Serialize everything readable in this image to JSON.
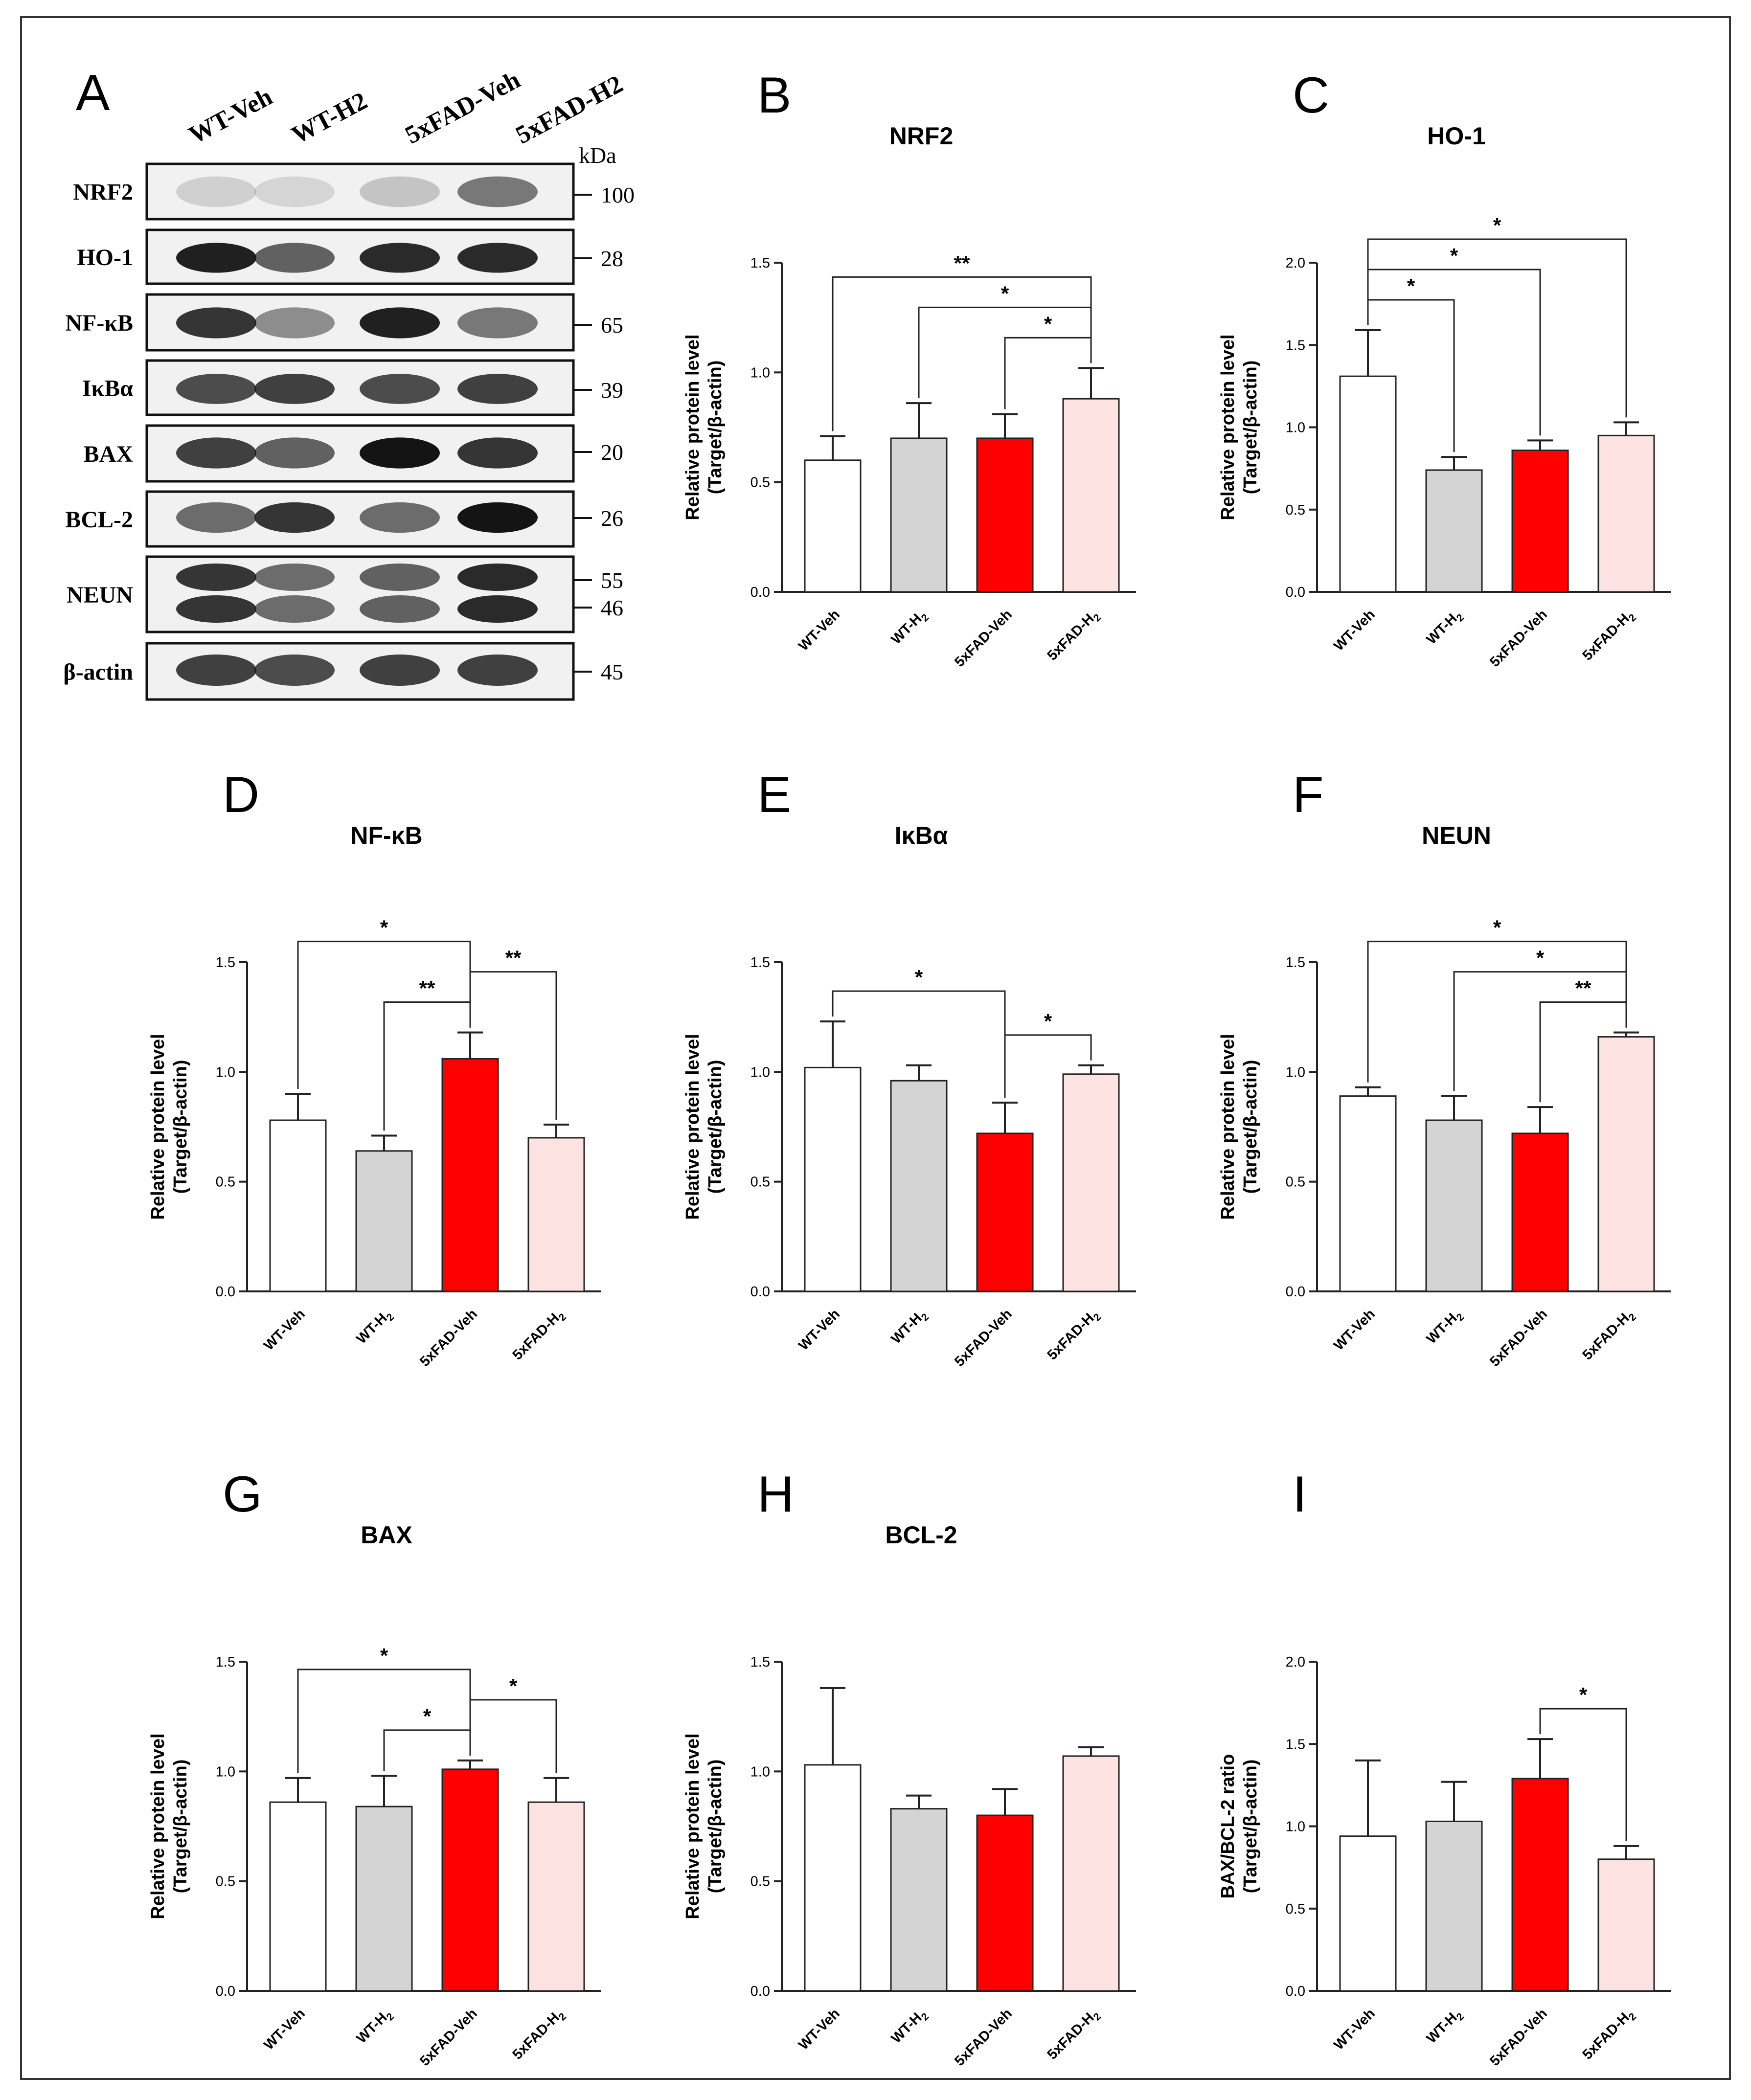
{
  "figure": {
    "blot": {
      "panel_label": "A",
      "kda_label": "kDa",
      "lanes": [
        "WT-Veh",
        "WT-H2",
        "5xFAD-Veh",
        "5xFAD-H2"
      ],
      "rows": [
        {
          "name": "NRF2",
          "kda": [
            "100"
          ]
        },
        {
          "name": "HO-1",
          "kda": [
            "28"
          ]
        },
        {
          "name": "NF-κB",
          "kda": [
            "65"
          ]
        },
        {
          "name": "IκBα",
          "kda": [
            "39"
          ]
        },
        {
          "name": "BAX",
          "kda": [
            "20"
          ]
        },
        {
          "name": "BCL-2",
          "kda": [
            "26"
          ]
        },
        {
          "name": "NEUN",
          "kda": [
            "55",
            "46"
          ]
        },
        {
          "name": "β-actin",
          "kda": [
            "45"
          ]
        }
      ]
    },
    "colors": {
      "WT-Veh": "#ffffff",
      "WT-H2": "#d4d4d4",
      "5xFAD-Veh": "#ff0000",
      "5xFAD-H2": "#fde2e2",
      "frame": "#333333"
    }
  },
  "chart_data": [
    {
      "panel": "B",
      "type": "bar",
      "title": "NRF2",
      "categories": [
        "WT-Veh",
        "WT-H2",
        "5xFAD-Veh",
        "5xFAD-H2"
      ],
      "values": [
        0.6,
        0.7,
        0.7,
        0.88
      ],
      "errors": [
        0.11,
        0.16,
        0.11,
        0.14
      ],
      "ylabel": [
        "Relative protein level",
        "(Target/β-actin)"
      ],
      "ylim": [
        0,
        1.5
      ],
      "yticks": [
        "0.0",
        "0.5",
        "1.0",
        "1.5"
      ],
      "significance": [
        {
          "from": 0,
          "to": 3,
          "label": "**"
        },
        {
          "from": 1,
          "to": 3,
          "label": "*"
        },
        {
          "from": 2,
          "to": 3,
          "label": "*"
        }
      ]
    },
    {
      "panel": "C",
      "type": "bar",
      "title": "HO-1",
      "categories": [
        "WT-Veh",
        "WT-H2",
        "5xFAD-Veh",
        "5xFAD-H2"
      ],
      "values": [
        1.31,
        0.74,
        0.86,
        0.95
      ],
      "errors": [
        0.28,
        0.08,
        0.06,
        0.08
      ],
      "ylabel": [
        "Relative protein level",
        "(Target/β-actin)"
      ],
      "ylim": [
        0,
        2.0
      ],
      "yticks": [
        "0.0",
        "0.5",
        "1.0",
        "1.5",
        "2.0"
      ],
      "significance": [
        {
          "from": 0,
          "to": 3,
          "label": "*"
        },
        {
          "from": 0,
          "to": 2,
          "label": "*"
        },
        {
          "from": 0,
          "to": 1,
          "label": "*"
        }
      ]
    },
    {
      "panel": "D",
      "type": "bar",
      "title": "NF-κB",
      "categories": [
        "WT-Veh",
        "WT-H2",
        "5xFAD-Veh",
        "5xFAD-H2"
      ],
      "values": [
        0.78,
        0.64,
        1.06,
        0.7
      ],
      "errors": [
        0.12,
        0.07,
        0.12,
        0.06
      ],
      "ylabel": [
        "Relative protein level",
        "(Target/β-actin)"
      ],
      "ylim": [
        0,
        1.5
      ],
      "yticks": [
        "0.0",
        "0.5",
        "1.0",
        "1.5"
      ],
      "significance": [
        {
          "from": 0,
          "to": 2,
          "label": "*"
        },
        {
          "from": 1,
          "to": 2,
          "label": "**"
        },
        {
          "from": 2,
          "to": 3,
          "label": "**"
        }
      ]
    },
    {
      "panel": "E",
      "type": "bar",
      "title": "IκBα",
      "categories": [
        "WT-Veh",
        "WT-H2",
        "5xFAD-Veh",
        "5xFAD-H2"
      ],
      "values": [
        1.02,
        0.96,
        0.72,
        0.99
      ],
      "errors": [
        0.21,
        0.07,
        0.14,
        0.04
      ],
      "ylabel": [
        "Relative protein level",
        "(Target/β-actin)"
      ],
      "ylim": [
        0,
        1.5
      ],
      "yticks": [
        "0.0",
        "0.5",
        "1.0",
        "1.5"
      ],
      "significance": [
        {
          "from": 0,
          "to": 2,
          "label": "*"
        },
        {
          "from": 2,
          "to": 3,
          "label": "*"
        }
      ]
    },
    {
      "panel": "F",
      "type": "bar",
      "title": "NEUN",
      "categories": [
        "WT-Veh",
        "WT-H2",
        "5xFAD-Veh",
        "5xFAD-H2"
      ],
      "values": [
        0.89,
        0.78,
        0.72,
        1.16
      ],
      "errors": [
        0.04,
        0.11,
        0.12,
        0.02
      ],
      "ylabel": [
        "Relative protein level",
        "(Target/β-actin)"
      ],
      "ylim": [
        0,
        1.5
      ],
      "yticks": [
        "0.0",
        "0.5",
        "1.0",
        "1.5"
      ],
      "significance": [
        {
          "from": 0,
          "to": 3,
          "label": "*"
        },
        {
          "from": 1,
          "to": 3,
          "label": "*"
        },
        {
          "from": 2,
          "to": 3,
          "label": "**"
        }
      ]
    },
    {
      "panel": "G",
      "type": "bar",
      "title": "BAX",
      "categories": [
        "WT-Veh",
        "WT-H2",
        "5xFAD-Veh",
        "5xFAD-H2"
      ],
      "values": [
        0.86,
        0.84,
        1.01,
        0.86
      ],
      "errors": [
        0.11,
        0.14,
        0.04,
        0.11
      ],
      "ylabel": [
        "Relative protein level",
        "(Target/β-actin)"
      ],
      "ylim": [
        0,
        1.5
      ],
      "yticks": [
        "0.0",
        "0.5",
        "1.0",
        "1.5"
      ],
      "significance": [
        {
          "from": 0,
          "to": 2,
          "label": "*"
        },
        {
          "from": 1,
          "to": 2,
          "label": "*"
        },
        {
          "from": 2,
          "to": 3,
          "label": "*"
        }
      ]
    },
    {
      "panel": "H",
      "type": "bar",
      "title": "BCL-2",
      "categories": [
        "WT-Veh",
        "WT-H2",
        "5xFAD-Veh",
        "5xFAD-H2"
      ],
      "values": [
        1.03,
        0.83,
        0.8,
        1.07
      ],
      "errors": [
        0.35,
        0.06,
        0.12,
        0.04
      ],
      "ylabel": [
        "Relative protein level",
        "(Target/β-actin)"
      ],
      "ylim": [
        0,
        1.5
      ],
      "yticks": [
        "0.0",
        "0.5",
        "1.0",
        "1.5"
      ],
      "significance": []
    },
    {
      "panel": "I",
      "type": "bar",
      "title": "",
      "categories": [
        "WT-Veh",
        "WT-H2",
        "5xFAD-Veh",
        "5xFAD-H2"
      ],
      "values": [
        0.94,
        1.03,
        1.29,
        0.8
      ],
      "errors": [
        0.46,
        0.24,
        0.24,
        0.08
      ],
      "ylabel": [
        "BAX/BCL-2 ratio",
        "(Target/β-actin)"
      ],
      "ylim": [
        0,
        2.0
      ],
      "yticks": [
        "0.0",
        "0.5",
        "1.0",
        "1.5",
        "2.0"
      ],
      "significance": [
        {
          "from": 2,
          "to": 3,
          "label": "*"
        }
      ]
    }
  ]
}
